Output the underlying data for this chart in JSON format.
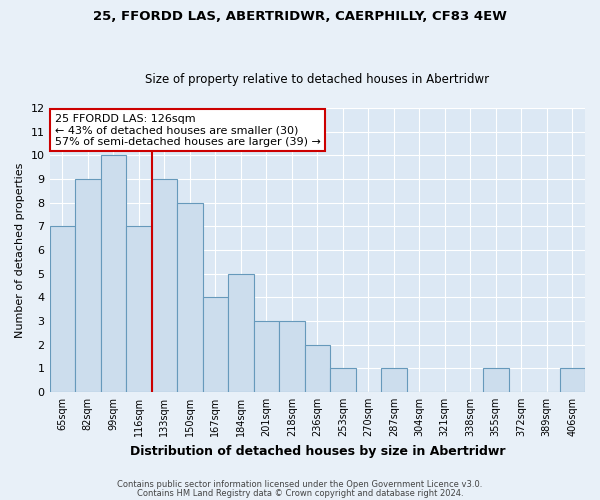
{
  "title": "25, FFORDD LAS, ABERTRIDWR, CAERPHILLY, CF83 4EW",
  "subtitle": "Size of property relative to detached houses in Abertridwr",
  "xlabel": "Distribution of detached houses by size in Abertridwr",
  "ylabel": "Number of detached properties",
  "bin_labels": [
    "65sqm",
    "82sqm",
    "99sqm",
    "116sqm",
    "133sqm",
    "150sqm",
    "167sqm",
    "184sqm",
    "201sqm",
    "218sqm",
    "236sqm",
    "253sqm",
    "270sqm",
    "287sqm",
    "304sqm",
    "321sqm",
    "338sqm",
    "355sqm",
    "372sqm",
    "389sqm",
    "406sqm"
  ],
  "bar_values": [
    7,
    9,
    10,
    7,
    9,
    8,
    4,
    5,
    3,
    3,
    2,
    1,
    0,
    1,
    0,
    0,
    0,
    1,
    0,
    0,
    1
  ],
  "bar_color": "#ccdded",
  "bar_edge_color": "#6699bb",
  "property_line_x": 4.0,
  "property_line_color": "#cc0000",
  "ylim": [
    0,
    12
  ],
  "yticks": [
    0,
    1,
    2,
    3,
    4,
    5,
    6,
    7,
    8,
    9,
    10,
    11,
    12
  ],
  "annotation_title": "25 FFORDD LAS: 126sqm",
  "annotation_line1": "← 43% of detached houses are smaller (30)",
  "annotation_line2": "57% of semi-detached houses are larger (39) →",
  "annotation_box_facecolor": "#ffffff",
  "annotation_box_edgecolor": "#cc0000",
  "footer_line1": "Contains HM Land Registry data © Crown copyright and database right 2024.",
  "footer_line2": "Contains public sector information licensed under the Open Government Licence v3.0.",
  "background_color": "#e8f0f8",
  "grid_color": "#ffffff",
  "plot_bg_color": "#dce8f4"
}
